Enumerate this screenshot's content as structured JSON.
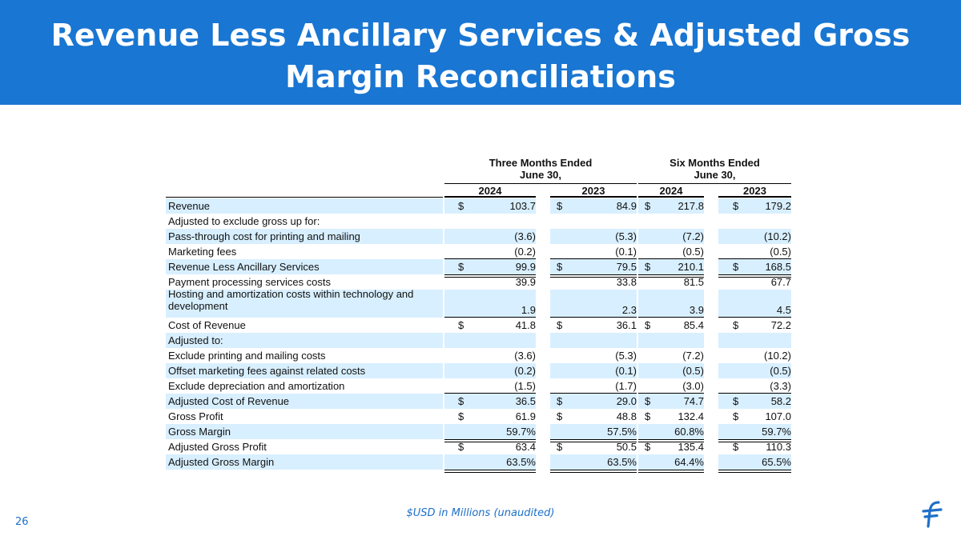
{
  "slide": {
    "title_line1": "Revenue Less Ancillary Services & Adjusted Gross",
    "title_line2": "Margin Reconciliations",
    "footer_note": "$USD in Millions (unaudited)",
    "page_number": "26",
    "brand_color": "#1976d2",
    "logo_icon": "flywire-logo-icon"
  },
  "table": {
    "group_headers": [
      {
        "line1": "Three Months Ended",
        "line2": "June 30,"
      },
      {
        "line1": "Six Months Ended",
        "line2": "June 30,"
      }
    ],
    "year_headers": [
      "2024",
      "2023",
      "2024",
      "2023"
    ],
    "currency_symbol": "$",
    "rows": [
      {
        "label": "Revenue",
        "values": [
          "103.7",
          "84.9",
          "217.8",
          "179.2"
        ],
        "dollar": true,
        "shaded": true,
        "rule": "none"
      },
      {
        "label": "Adjusted to exclude gross up for:",
        "values": [
          "",
          "",
          "",
          ""
        ],
        "dollar": false,
        "shaded": false,
        "rule": "none"
      },
      {
        "label": "Pass-through cost for printing and mailing",
        "values": [
          "(3.6)",
          "(5.3)",
          "(7.2)",
          "(10.2)"
        ],
        "dollar": false,
        "shaded": true,
        "rule": "none"
      },
      {
        "label": "Marketing fees",
        "values": [
          "(0.2)",
          "(0.1)",
          "(0.5)",
          "(0.5)"
        ],
        "dollar": false,
        "shaded": false,
        "rule": "single"
      },
      {
        "label": "Revenue Less Ancillary Services",
        "values": [
          "99.9",
          "79.5",
          "210.1",
          "168.5"
        ],
        "dollar": true,
        "shaded": true,
        "rule": "double"
      },
      {
        "label": "Payment processing services costs",
        "values": [
          "39.9",
          "33.8",
          "81.5",
          "67.7"
        ],
        "dollar": false,
        "shaded": false,
        "rule": "none"
      },
      {
        "label_line1": "Hosting and amortization costs within technology and",
        "label_line2": "development",
        "values": [
          "1.9",
          "2.3",
          "3.9",
          "4.5"
        ],
        "dollar": false,
        "shaded": true,
        "rule": "single",
        "tall": true
      },
      {
        "label": "Cost of Revenue",
        "values": [
          "41.8",
          "36.1",
          "85.4",
          "72.2"
        ],
        "dollar": true,
        "shaded": false,
        "rule": "double"
      },
      {
        "label": "Adjusted to:",
        "values": [
          "",
          "",
          "",
          ""
        ],
        "dollar": false,
        "shaded": true,
        "rule": "none"
      },
      {
        "label": "Exclude printing and mailing costs",
        "values": [
          "(3.6)",
          "(5.3)",
          "(7.2)",
          "(10.2)"
        ],
        "dollar": false,
        "shaded": false,
        "rule": "none"
      },
      {
        "label": "Offset marketing fees against related costs",
        "values": [
          "(0.2)",
          "(0.1)",
          "(0.5)",
          "(0.5)"
        ],
        "dollar": false,
        "shaded": true,
        "rule": "none"
      },
      {
        "label": "Exclude depreciation and amortization",
        "values": [
          "(1.5)",
          "(1.7)",
          "(3.0)",
          "(3.3)"
        ],
        "dollar": false,
        "shaded": false,
        "rule": "single"
      },
      {
        "label": "Adjusted Cost of Revenue",
        "values": [
          "36.5",
          "29.0",
          "74.7",
          "58.2"
        ],
        "dollar": true,
        "shaded": true,
        "rule": "none"
      },
      {
        "label": "Gross Profit",
        "values": [
          "61.9",
          "48.8",
          "132.4",
          "107.0"
        ],
        "dollar": true,
        "shaded": false,
        "rule": "none"
      },
      {
        "label": "Gross Margin",
        "values": [
          "59.7%",
          "57.5%",
          "60.8%",
          "59.7%"
        ],
        "dollar": false,
        "shaded": true,
        "rule": "double"
      },
      {
        "label": "Adjusted Gross Profit",
        "values": [
          "63.4",
          "50.5",
          "135.4",
          "110.3"
        ],
        "dollar": true,
        "shaded": false,
        "rule": "none"
      },
      {
        "label": "Adjusted Gross Margin",
        "values": [
          "63.5%",
          "63.5%",
          "64.4%",
          "65.5%"
        ],
        "dollar": false,
        "shaded": true,
        "rule": "double"
      }
    ]
  }
}
